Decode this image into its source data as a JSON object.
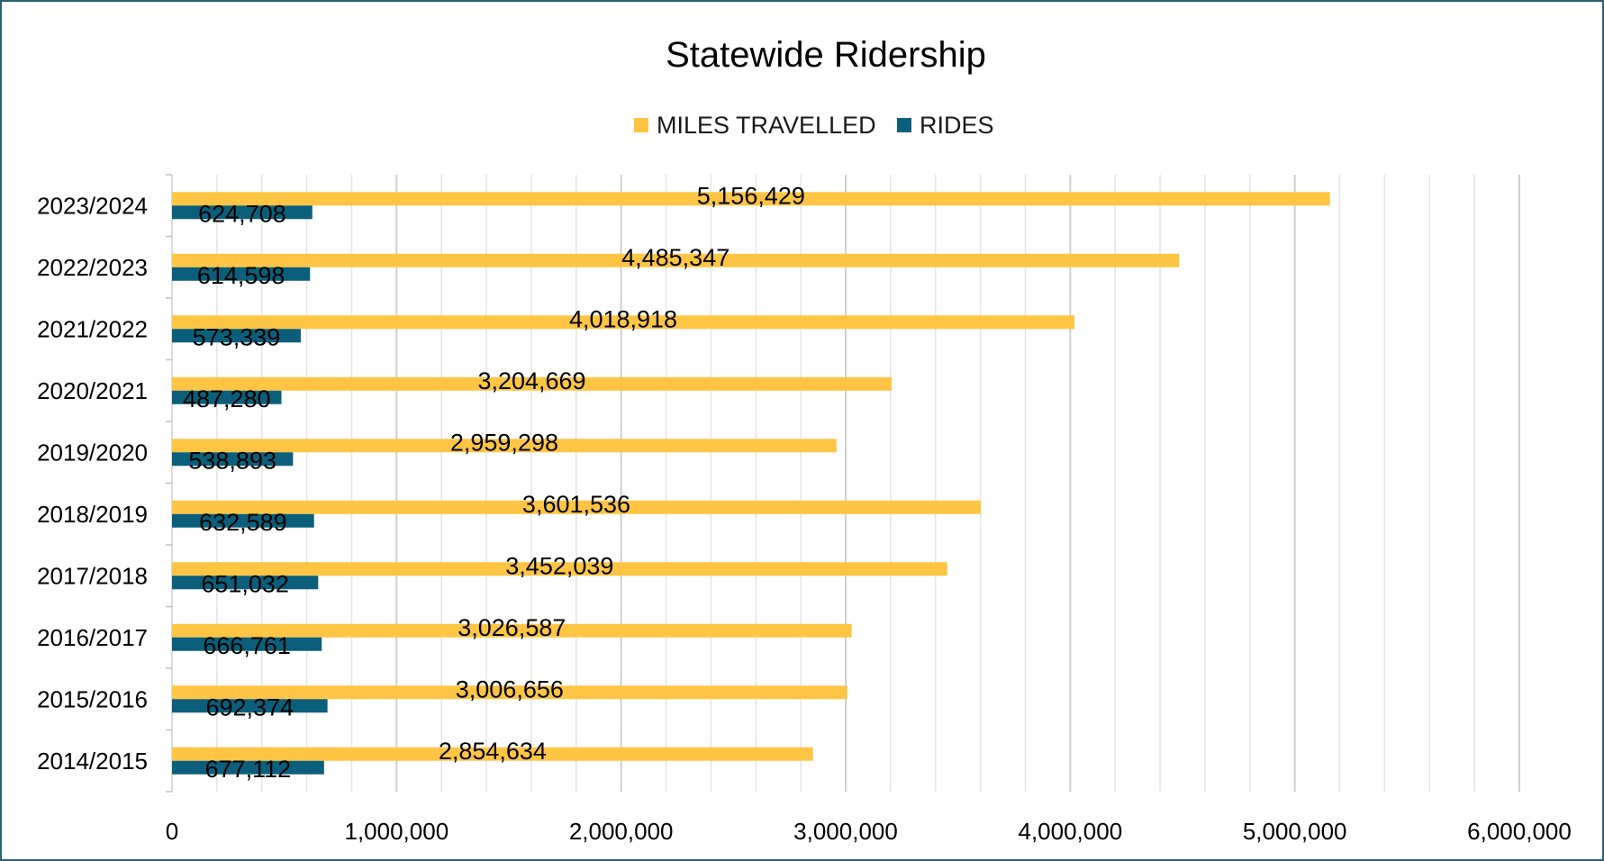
{
  "chart_data": {
    "type": "bar",
    "orientation": "horizontal",
    "title": "Statewide Ridership",
    "xlabel": "",
    "ylabel": "",
    "xlim": [
      0,
      6000000
    ],
    "x_ticks": [
      "0",
      "1,000,000",
      "2,000,000",
      "3,000,000",
      "4,000,000",
      "5,000,000",
      "6,000,000"
    ],
    "grid": "vertical major and minor gridlines",
    "legend_position": "top",
    "categories": [
      "2023/2024",
      "2022/2023",
      "2021/2022",
      "2020/2021",
      "2019/2020",
      "2018/2019",
      "2017/2018",
      "2016/2017",
      "2015/2016",
      "2014/2015"
    ],
    "series": [
      {
        "name": "MILES TRAVELLED",
        "color": "#fdc543",
        "values": [
          5156429,
          4485347,
          4018918,
          3204669,
          2959298,
          3601536,
          3452039,
          3026587,
          3006656,
          2854634
        ],
        "labels": [
          "5,156,429",
          "4,485,347",
          "4,018,918",
          "3,204,669",
          "2,959,298",
          "3,601,536",
          "3,452,039",
          "3,026,587",
          "3,006,656",
          "2,854,634"
        ]
      },
      {
        "name": "RIDES",
        "color": "#0b5f7a",
        "values": [
          624708,
          614598,
          573339,
          487280,
          538893,
          632589,
          651032,
          666761,
          692374,
          677112
        ],
        "labels": [
          "624,708",
          "614,598",
          "573,339",
          "487,280",
          "538,893",
          "632,589",
          "651,032",
          "666,761",
          "692,374",
          "677,112"
        ]
      }
    ]
  }
}
